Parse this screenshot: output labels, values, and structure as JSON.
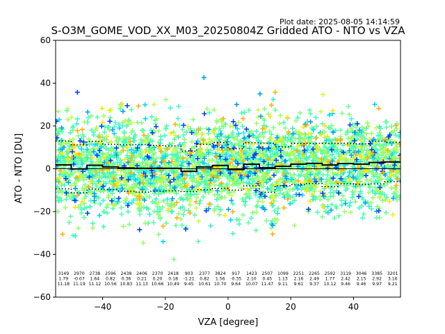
{
  "chart_data": {
    "type": "scatter",
    "title": "S-O3M_GOME_VOD_XX_M03_20250804Z Gridded ATO - NTO vs VZA",
    "plot_date": "Plot date: 2025-08-05 14:14:59",
    "xlabel": "VZA [degree]",
    "ylabel": "ATO - NTO [DU]",
    "xlim": [
      -55,
      55
    ],
    "ylim": [
      -60,
      60
    ],
    "xticks": [
      -40,
      -20,
      0,
      20,
      40
    ],
    "yticks": [
      -60,
      -40,
      -20,
      0,
      20,
      40,
      60
    ],
    "grid": false,
    "colors": {
      "scatter_palette": [
        "#7fff7f",
        "#5cffa0",
        "#3fffbe",
        "#9fff60",
        "#2ff0d0",
        "#c8ff3a",
        "#00d8ff",
        "#ffe600",
        "#00a0ff",
        "#0040ff",
        "#ffb000"
      ],
      "mean_line": "#000000",
      "std_line": "#000000",
      "zero_line": "#000000"
    },
    "bins": {
      "x_centers": [
        -52.5,
        -47.5,
        -42.5,
        -37.5,
        -32.5,
        -27.5,
        -22.5,
        -17.5,
        -12.5,
        -7.5,
        -2.5,
        2.5,
        7.5,
        12.5,
        17.5,
        22.5,
        27.5,
        32.5,
        37.5,
        42.5,
        47.5,
        52.5
      ],
      "count": [
        3149,
        2970,
        2738,
        2596,
        2438,
        2406,
        2370,
        2418,
        903,
        2377,
        3824,
        917,
        1423,
        2507,
        1099,
        2251,
        2265,
        2592,
        3119,
        3046,
        3385,
        3201
      ],
      "mean": [
        1.79,
        -0.07,
        1.64,
        0.82,
        0.36,
        0.21,
        0.2,
        0.18,
        -1.21,
        0.82,
        1.56,
        -0.35,
        2.1,
        0.45,
        1.13,
        2.16,
        2.49,
        1.77,
        2.42,
        2.15,
        2.92,
        3.16
      ],
      "std": [
        11.18,
        11.19,
        11.12,
        10.56,
        10.83,
        11.13,
        10.66,
        10.49,
        9.45,
        10.61,
        10.7,
        9.64,
        10.07,
        11.47,
        9.11,
        9.61,
        9.37,
        10.12,
        9.46,
        9.46,
        9.97,
        9.21
      ]
    }
  }
}
